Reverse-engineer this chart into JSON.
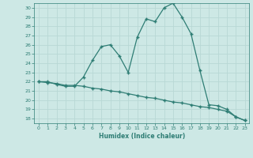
{
  "title": "",
  "xlabel": "Humidex (Indice chaleur)",
  "bg_color": "#cde8e5",
  "line_color": "#2e7d74",
  "grid_color": "#b8d8d5",
  "xlim": [
    -0.5,
    23.5
  ],
  "ylim": [
    17.5,
    30.5
  ],
  "yticks": [
    18,
    19,
    20,
    21,
    22,
    23,
    24,
    25,
    26,
    27,
    28,
    29,
    30
  ],
  "xticks": [
    0,
    1,
    2,
    3,
    4,
    5,
    6,
    7,
    8,
    9,
    10,
    11,
    12,
    13,
    14,
    15,
    16,
    17,
    18,
    19,
    20,
    21,
    22,
    23
  ],
  "series1_x": [
    0,
    1,
    2,
    3,
    4,
    5,
    6,
    7,
    8,
    9,
    10,
    11,
    12,
    13,
    14,
    15,
    16,
    17,
    18,
    19,
    20,
    21,
    22,
    23
  ],
  "series1_y": [
    22.0,
    22.0,
    21.7,
    21.5,
    21.5,
    22.5,
    24.3,
    25.8,
    26.0,
    24.8,
    23.0,
    26.8,
    28.8,
    28.5,
    30.0,
    30.5,
    29.0,
    27.2,
    23.2,
    19.5,
    19.4,
    19.0,
    18.2,
    17.8
  ],
  "series2_x": [
    0,
    1,
    2,
    3,
    4,
    5,
    6,
    7,
    8,
    9,
    10,
    11,
    12,
    13,
    14,
    15,
    16,
    17,
    18,
    19,
    20,
    21,
    22,
    23
  ],
  "series2_y": [
    22.0,
    21.9,
    21.8,
    21.6,
    21.6,
    21.5,
    21.3,
    21.2,
    21.0,
    20.9,
    20.7,
    20.5,
    20.3,
    20.2,
    20.0,
    19.8,
    19.7,
    19.5,
    19.3,
    19.2,
    19.0,
    18.8,
    18.2,
    17.8
  ]
}
